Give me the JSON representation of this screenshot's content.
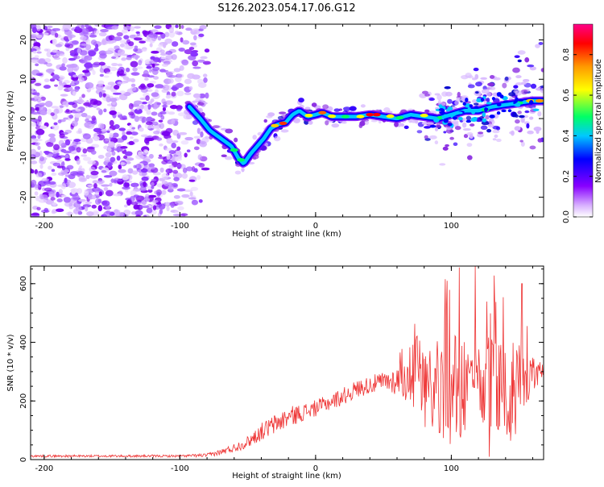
{
  "chart_data": [
    {
      "type": "heatmap",
      "title": "S126.2023.054.17.06.G12",
      "xlabel": "Height of straight line (km)",
      "ylabel": "Frequency (Hz)",
      "xlim": [
        -210,
        168
      ],
      "ylim": [
        -25,
        24
      ],
      "xticks": [
        -200,
        -100,
        0,
        100
      ],
      "xtick_labels": [
        "-200",
        "-100",
        "0",
        "100"
      ],
      "yticks": [
        -20,
        -10,
        0,
        10,
        20
      ],
      "ytick_labels": [
        "-20",
        "-10",
        "0",
        "10",
        "20"
      ],
      "colorbar": {
        "label": "Normalized spectral amplitude",
        "range": [
          0,
          0.95
        ],
        "ticks": [
          0.0,
          0.2,
          0.4,
          0.6,
          0.8
        ],
        "tick_labels": [
          "0.0",
          "0.2",
          "0.4",
          "0.6",
          "0.8"
        ],
        "colormap": [
          "#ffffff",
          "#d8b0ff",
          "#8800ff",
          "#0000ff",
          "#00c8ff",
          "#00ff66",
          "#ffff00",
          "#ff9900",
          "#ff0000",
          "#ff0088"
        ]
      },
      "ridge": {
        "x": [
          -93,
          -85,
          -78,
          -70,
          -62,
          -57,
          -53,
          -48,
          -43,
          -38,
          -33,
          -28,
          -22,
          -17,
          -12,
          -6,
          0,
          5,
          12,
          20,
          30,
          40,
          50,
          60,
          70,
          80,
          90,
          100,
          110,
          120,
          130,
          140,
          150,
          160,
          168
        ],
        "y": [
          3,
          0,
          -3,
          -5,
          -7,
          -10,
          -11.5,
          -9,
          -7,
          -5,
          -2.5,
          -1.5,
          -1,
          1,
          2,
          0.5,
          1,
          1.5,
          0.5,
          0.5,
          0.5,
          1,
          0.5,
          0,
          1,
          0.5,
          0,
          1,
          2,
          2,
          3,
          3.5,
          4,
          4.5,
          4.5
        ]
      },
      "noise_region": [
        -210,
        -90
      ]
    },
    {
      "type": "line",
      "title": "",
      "xlabel": "Height of straight line (km)",
      "ylabel": "SNR (10 * v/v)",
      "xlim": [
        -210,
        168
      ],
      "ylim": [
        0,
        660
      ],
      "xticks": [
        -200,
        -100,
        0,
        100
      ],
      "xtick_labels": [
        "-200",
        "-100",
        "0",
        "100"
      ],
      "yticks": [
        0,
        200,
        400,
        600
      ],
      "ytick_labels": [
        "0",
        "200",
        "400",
        "600"
      ],
      "color": "#ee3333",
      "envelope": {
        "x": [
          -210,
          -100,
          -80,
          -70,
          -60,
          -50,
          -40,
          -30,
          -20,
          -10,
          0,
          10,
          20,
          30,
          40,
          50,
          60,
          70,
          80,
          90,
          100,
          110,
          120,
          130,
          140,
          150,
          160,
          168
        ],
        "mean": [
          12,
          12,
          15,
          25,
          40,
          60,
          95,
          120,
          145,
          160,
          175,
          195,
          215,
          240,
          255,
          265,
          270,
          265,
          260,
          250,
          240,
          245,
          240,
          240,
          245,
          260,
          290,
          300
        ],
        "spread": [
          4,
          4,
          6,
          10,
          15,
          20,
          30,
          35,
          35,
          30,
          28,
          28,
          30,
          30,
          30,
          35,
          50,
          80,
          120,
          170,
          190,
          200,
          200,
          190,
          170,
          130,
          60,
          30
        ]
      }
    }
  ]
}
